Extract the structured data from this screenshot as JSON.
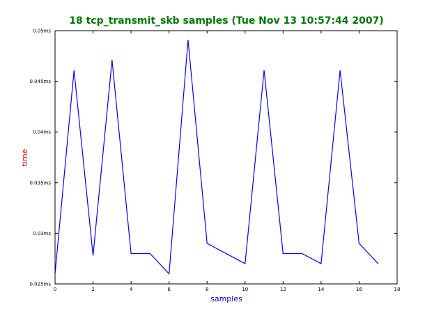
{
  "chart_data": {
    "type": "line",
    "title": "18 tcp_transmit_skb samples (Tue Nov 13 10:57:44 2007)",
    "xlabel": "samples",
    "ylabel": "time",
    "xlim": [
      0,
      18
    ],
    "ylim": [
      0.025,
      0.05
    ],
    "xticks": [
      0,
      2,
      4,
      6,
      8,
      10,
      12,
      14,
      16,
      18
    ],
    "xtick_labels": [
      "0",
      "2",
      "4",
      "6",
      "8",
      "10",
      "12",
      "14",
      "16",
      "18"
    ],
    "yticks": [
      0.025,
      0.03,
      0.035,
      0.04,
      0.045,
      0.05
    ],
    "ytick_labels": [
      "0.025ms",
      "0.03ms",
      "0.035ms",
      "0.04ms",
      "0.045ms",
      "0.05ms"
    ],
    "grid": false,
    "colors": {
      "title": "#007700",
      "xlabel": "#0000cc",
      "ylabel": "#cc0000",
      "line": "#0000ff"
    },
    "series": [
      {
        "x": [
          0,
          1,
          2,
          3,
          4,
          5,
          6,
          7,
          8,
          9,
          10,
          11,
          12,
          13,
          14,
          15,
          16,
          17
        ],
        "values": [
          0.026,
          0.0461,
          0.0278,
          0.0471,
          0.028,
          0.028,
          0.026,
          0.0491,
          0.029,
          0.028,
          0.027,
          0.0461,
          0.028,
          0.028,
          0.027,
          0.0461,
          0.029,
          0.027
        ]
      }
    ]
  }
}
